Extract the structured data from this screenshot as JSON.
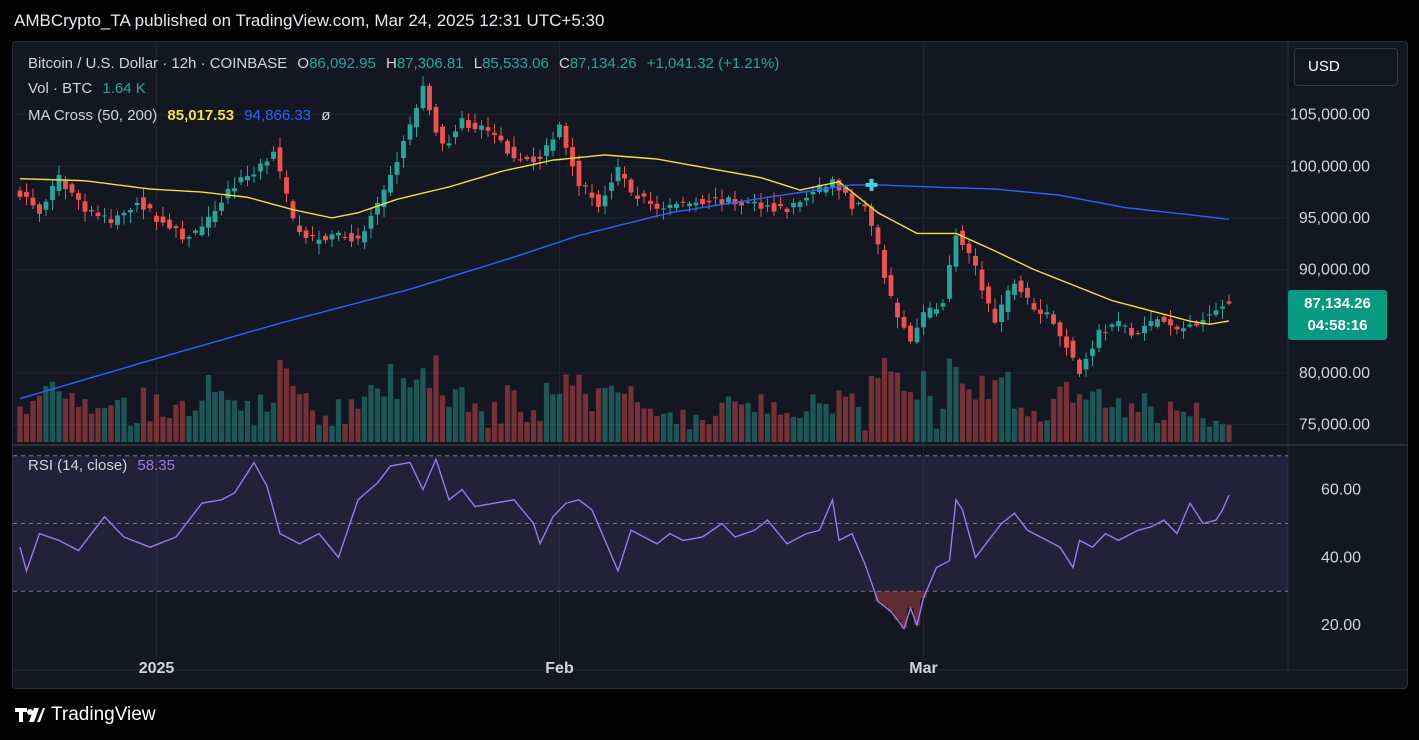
{
  "header": {
    "attribution": "AMBCrypto_TA published on TradingView.com, Mar 24, 2025 12:31 UTC+5:30"
  },
  "legend": {
    "symbol": "Bitcoin / U.S. Dollar · 12h · COINBASE",
    "open_label": "O",
    "open": "86,092.95",
    "high_label": "H",
    "high": "87,306.81",
    "low_label": "L",
    "low": "85,533.06",
    "close_label": "C",
    "close": "87,134.26",
    "change": "+1,041.32 (+1.21%)",
    "vol_label": "Vol · BTC",
    "vol": "1.64 K",
    "ma_label": "MA Cross (50, 200)",
    "ma50": "85,017.53",
    "ma200": "94,866.33",
    "ma_extra": "ø",
    "rsi_label": "RSI (14, close)",
    "rsi": "58.35"
  },
  "currency_button": "USD",
  "price_tag": {
    "price": "87,134.26",
    "countdown": "04:58:16"
  },
  "footer": {
    "logo_text": "TradingView"
  },
  "colors": {
    "up": "#26a69a",
    "down": "#ef5350",
    "ma50": "#f5e03a",
    "ma200": "#2962ff",
    "rsi": "#9a7ae6",
    "background": "#131722",
    "grid": "#1f2330"
  },
  "chart_data": {
    "type": "candlestick",
    "interval": "12h",
    "price_axis": {
      "ticks": [
        "105,000.00",
        "100,000.00",
        "95,000.00",
        "90,000.00",
        "80,000.00",
        "75,000.00"
      ],
      "tick_values": [
        105000,
        100000,
        95000,
        90000,
        80000,
        75000
      ],
      "range": [
        73300,
        110100
      ]
    },
    "rsi_axis": {
      "ticks": [
        "60.00",
        "40.00",
        "20.00"
      ],
      "tick_values": [
        60,
        40,
        20
      ],
      "range": [
        15,
        72
      ],
      "bands": [
        30,
        50,
        70
      ]
    },
    "time_labels": [
      {
        "text": "2025",
        "index": 21
      },
      {
        "text": "Feb",
        "index": 83
      },
      {
        "text": "Mar",
        "index": 139
      }
    ],
    "candle_count": 187,
    "close_anchors": [
      [
        0,
        97500
      ],
      [
        3,
        95500
      ],
      [
        6,
        98800
      ],
      [
        10,
        96000
      ],
      [
        14,
        94500
      ],
      [
        18,
        96700
      ],
      [
        21,
        95000
      ],
      [
        25,
        93200
      ],
      [
        28,
        93800
      ],
      [
        32,
        97700
      ],
      [
        36,
        99500
      ],
      [
        39,
        101600
      ],
      [
        42,
        94600
      ],
      [
        45,
        92800
      ],
      [
        49,
        93500
      ],
      [
        52,
        92700
      ],
      [
        56,
        97300
      ],
      [
        60,
        104000
      ],
      [
        62,
        107500
      ],
      [
        65,
        101800
      ],
      [
        68,
        104400
      ],
      [
        72,
        103300
      ],
      [
        76,
        101000
      ],
      [
        80,
        100700
      ],
      [
        83,
        104000
      ],
      [
        86,
        98500
      ],
      [
        89,
        96300
      ],
      [
        92,
        99500
      ],
      [
        94,
        97500
      ],
      [
        98,
        96000
      ],
      [
        102,
        96400
      ],
      [
        106,
        96800
      ],
      [
        110,
        96500
      ],
      [
        114,
        96300
      ],
      [
        118,
        95800
      ],
      [
        121,
        97000
      ],
      [
        125,
        98600
      ],
      [
        128,
        96300
      ],
      [
        130,
        96000
      ],
      [
        132,
        92000
      ],
      [
        134,
        87000
      ],
      [
        137,
        83000
      ],
      [
        139,
        85500
      ],
      [
        142,
        87000
      ],
      [
        144,
        93500
      ],
      [
        147,
        90000
      ],
      [
        150,
        84800
      ],
      [
        153,
        89000
      ],
      [
        156,
        86000
      ],
      [
        158,
        85800
      ],
      [
        161,
        82800
      ],
      [
        163,
        80000
      ],
      [
        166,
        84000
      ],
      [
        169,
        84600
      ],
      [
        172,
        83800
      ],
      [
        175,
        85300
      ],
      [
        178,
        84000
      ],
      [
        181,
        85000
      ],
      [
        184,
        86100
      ],
      [
        186,
        87134
      ]
    ],
    "ma50_anchors": [
      [
        0,
        98800
      ],
      [
        10,
        98600
      ],
      [
        20,
        97800
      ],
      [
        28,
        97500
      ],
      [
        35,
        97000
      ],
      [
        42,
        95800
      ],
      [
        48,
        95000
      ],
      [
        52,
        95500
      ],
      [
        58,
        96800
      ],
      [
        66,
        98000
      ],
      [
        74,
        99500
      ],
      [
        82,
        100600
      ],
      [
        90,
        101100
      ],
      [
        98,
        100700
      ],
      [
        106,
        99800
      ],
      [
        114,
        98900
      ],
      [
        120,
        97700
      ],
      [
        126,
        98500
      ],
      [
        132,
        95500
      ],
      [
        138,
        93500
      ],
      [
        144,
        93500
      ],
      [
        150,
        91800
      ],
      [
        156,
        90000
      ],
      [
        162,
        88500
      ],
      [
        168,
        87000
      ],
      [
        174,
        86000
      ],
      [
        180,
        85000
      ],
      [
        183,
        84700
      ],
      [
        186,
        85017
      ]
    ],
    "ma200_anchors": [
      [
        0,
        77500
      ],
      [
        20,
        81200
      ],
      [
        40,
        84800
      ],
      [
        60,
        88100
      ],
      [
        75,
        91000
      ],
      [
        86,
        93300
      ],
      [
        100,
        95500
      ],
      [
        115,
        97000
      ],
      [
        128,
        98200
      ],
      [
        132,
        98200
      ],
      [
        140,
        98000
      ],
      [
        150,
        97800
      ],
      [
        160,
        97200
      ],
      [
        170,
        96000
      ],
      [
        180,
        95300
      ],
      [
        186,
        94866
      ]
    ],
    "rsi_anchors": [
      [
        0,
        43
      ],
      [
        1,
        36
      ],
      [
        3,
        47
      ],
      [
        6,
        45
      ],
      [
        9,
        42
      ],
      [
        13,
        52
      ],
      [
        16,
        46
      ],
      [
        20,
        43
      ],
      [
        24,
        46
      ],
      [
        28,
        56
      ],
      [
        31,
        57
      ],
      [
        33,
        59
      ],
      [
        36,
        68
      ],
      [
        38,
        61
      ],
      [
        40,
        47
      ],
      [
        43,
        44
      ],
      [
        46,
        47
      ],
      [
        49,
        40
      ],
      [
        52,
        57
      ],
      [
        55,
        62
      ],
      [
        57,
        67
      ],
      [
        60,
        68
      ],
      [
        62,
        60
      ],
      [
        64,
        69
      ],
      [
        66,
        57
      ],
      [
        68,
        60
      ],
      [
        70,
        55
      ],
      [
        73,
        56
      ],
      [
        76,
        57
      ],
      [
        79,
        50
      ],
      [
        80,
        44
      ],
      [
        82,
        52
      ],
      [
        84,
        56
      ],
      [
        86,
        57
      ],
      [
        88,
        54
      ],
      [
        90,
        45
      ],
      [
        92,
        36
      ],
      [
        94,
        48
      ],
      [
        96,
        46
      ],
      [
        98,
        44
      ],
      [
        100,
        47
      ],
      [
        102,
        45
      ],
      [
        105,
        46
      ],
      [
        108,
        50
      ],
      [
        110,
        46
      ],
      [
        113,
        48
      ],
      [
        115,
        51
      ],
      [
        118,
        44
      ],
      [
        121,
        47
      ],
      [
        123,
        48
      ],
      [
        125,
        57
      ],
      [
        126,
        45
      ],
      [
        128,
        47
      ],
      [
        130,
        38
      ],
      [
        132,
        27
      ],
      [
        134,
        24
      ],
      [
        136,
        19
      ],
      [
        137,
        25
      ],
      [
        138,
        20
      ],
      [
        139,
        28
      ],
      [
        141,
        37
      ],
      [
        143,
        39
      ],
      [
        144,
        57
      ],
      [
        145,
        54
      ],
      [
        147,
        40
      ],
      [
        149,
        45
      ],
      [
        151,
        50
      ],
      [
        153,
        53
      ],
      [
        155,
        48
      ],
      [
        158,
        45
      ],
      [
        160,
        43
      ],
      [
        162,
        37
      ],
      [
        163,
        45
      ],
      [
        165,
        43
      ],
      [
        167,
        47
      ],
      [
        169,
        45
      ],
      [
        172,
        48
      ],
      [
        174,
        49
      ],
      [
        176,
        51
      ],
      [
        178,
        47
      ],
      [
        180,
        56
      ],
      [
        182,
        50
      ],
      [
        184,
        51
      ],
      [
        185,
        54
      ],
      [
        186,
        58.35
      ]
    ],
    "ma_cross_marker_index": 131
  }
}
